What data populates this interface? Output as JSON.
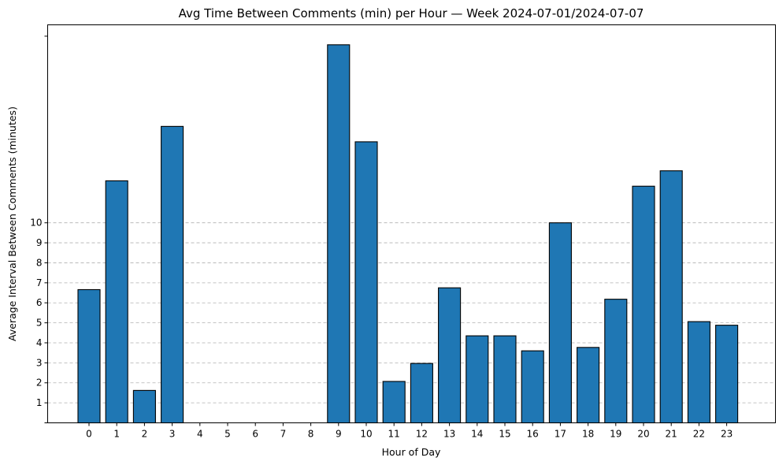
{
  "chart_data": {
    "type": "bar",
    "title": "Avg Time Between Comments (min) per Hour — Week 2024-07-01/2024-07-07",
    "xlabel": "Hour of Day",
    "ylabel": "Average Interval Between Comments (minutes)",
    "categories": [
      "0",
      "1",
      "2",
      "3",
      "4",
      "5",
      "6",
      "7",
      "8",
      "9",
      "10",
      "11",
      "12",
      "13",
      "14",
      "15",
      "16",
      "17",
      "18",
      "19",
      "20",
      "21",
      "22",
      "23"
    ],
    "values": [
      6.66,
      12.1,
      1.62,
      14.82,
      0,
      0,
      0,
      0,
      0,
      18.9,
      14.05,
      2.07,
      2.97,
      6.75,
      4.35,
      4.35,
      3.6,
      10.0,
      3.77,
      6.18,
      11.83,
      12.6,
      5.06,
      4.88
    ],
    "ylim": [
      0,
      19.33
    ],
    "yticks": [
      "",
      "1",
      "2",
      "3",
      "4",
      "5",
      "6",
      "7",
      "8",
      "9",
      "10",
      ""
    ],
    "ytick_values": [
      0,
      1,
      2,
      3,
      4,
      5,
      6,
      7,
      8,
      9,
      10,
      19.33
    ],
    "grid_values": [
      1,
      2,
      3,
      4,
      5,
      6,
      7,
      8,
      9,
      10
    ],
    "grid": true,
    "colors": {
      "bar": "#1f77b4",
      "edge": "#000000"
    }
  }
}
